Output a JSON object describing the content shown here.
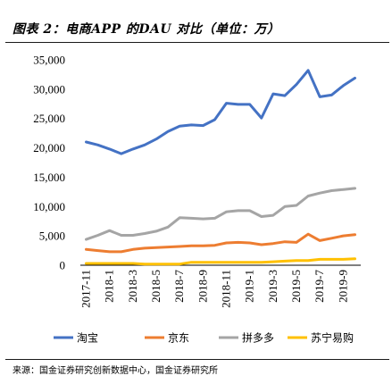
{
  "title": "图表 2：电商APP 的DAU 对比（单位：万）",
  "source": "来源：国金证券研究创新数据中心，国金证券研究所",
  "chart_data": {
    "type": "line",
    "title": "",
    "xlabel": "",
    "ylabel": "",
    "ylim": [
      0,
      35000
    ],
    "yticks": [
      0,
      5000,
      10000,
      15000,
      20000,
      25000,
      30000,
      35000
    ],
    "ytick_labels": [
      "0",
      "5,000",
      "10,000",
      "15,000",
      "20,000",
      "25,000",
      "30,000",
      "35,000"
    ],
    "x": [
      "2017-11",
      "2017-12",
      "2018-1",
      "2018-2",
      "2018-3",
      "2018-4",
      "2018-5",
      "2018-6",
      "2018-7",
      "2018-8",
      "2018-9",
      "2018-10",
      "2018-11",
      "2018-12",
      "2019-1",
      "2019-2",
      "2019-3",
      "2019-4",
      "2019-5",
      "2019-6",
      "2019-7",
      "2019-8",
      "2019-9",
      "2019-10"
    ],
    "xtick_labels": [
      "2017-11",
      "2018-1",
      "2018-3",
      "2018-5",
      "2018-7",
      "2018-9",
      "2018-11",
      "2019-1",
      "2019-3",
      "2019-5",
      "2019-7",
      "2019-9"
    ],
    "grid": false,
    "legend_position": "bottom",
    "series": [
      {
        "name": "淘宝",
        "color": "#4472C4",
        "values": [
          21000,
          20500,
          19800,
          19000,
          19800,
          20500,
          21500,
          22800,
          23700,
          23900,
          23800,
          24800,
          27600,
          27400,
          27400,
          25100,
          29200,
          28900,
          30800,
          33200,
          28700,
          29000,
          30600,
          31900
        ]
      },
      {
        "name": "京东",
        "color": "#ED7D31",
        "values": [
          2700,
          2500,
          2300,
          2300,
          2700,
          2900,
          3000,
          3100,
          3200,
          3300,
          3300,
          3400,
          3800,
          3900,
          3800,
          3500,
          3700,
          4000,
          3900,
          5300,
          4200,
          4600,
          5000,
          5200
        ]
      },
      {
        "name": "拼多多",
        "color": "#A5A5A5",
        "values": [
          4400,
          5100,
          5900,
          5100,
          5100,
          5400,
          5800,
          6500,
          8100,
          8000,
          7900,
          8000,
          9100,
          9300,
          9300,
          8300,
          8500,
          10000,
          10200,
          11800,
          12300,
          12700,
          12900,
          13100
        ]
      },
      {
        "name": "苏宁易购",
        "color": "#FFC000",
        "values": [
          300,
          300,
          300,
          300,
          300,
          200,
          200,
          200,
          200,
          500,
          500,
          500,
          500,
          500,
          500,
          500,
          600,
          700,
          800,
          800,
          1000,
          1000,
          1000,
          1100
        ]
      }
    ]
  }
}
